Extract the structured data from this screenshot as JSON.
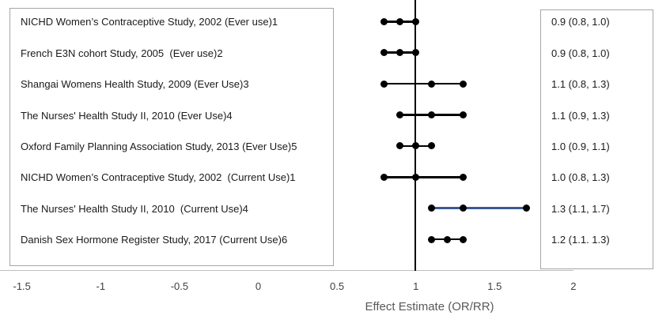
{
  "chart_data": {
    "type": "forest",
    "title": "",
    "xlabel": "Effect Estimate (OR/RR)",
    "x_ticks": [
      -1.5,
      -1,
      -0.5,
      0,
      0.5,
      1,
      1.5,
      2
    ],
    "x_axis_range": [
      -1.5,
      2.25
    ],
    "reference_line_x": 1,
    "grid": false,
    "studies": [
      {
        "label": "NICHD Women’s Contraceptive Study, 2002 (Ever use)1",
        "estimate": 0.9,
        "ci_low": 0.8,
        "ci_high": 1.0,
        "value_text": "0.9 (0.8, 1.0)",
        "highlight": false
      },
      {
        "label": "French E3N cohort Study, 2005  (Ever use)2",
        "estimate": 0.9,
        "ci_low": 0.8,
        "ci_high": 1.0,
        "value_text": "0.9 (0.8, 1.0)",
        "highlight": false
      },
      {
        "label": "Shangai Womens Health Study, 2009 (Ever Use)3",
        "estimate": 1.1,
        "ci_low": 0.8,
        "ci_high": 1.3,
        "value_text": "1.1 (0.8, 1.3)",
        "highlight": false
      },
      {
        "label": "The Nurses' Health Study II, 2010 (Ever Use)4",
        "estimate": 1.1,
        "ci_low": 0.9,
        "ci_high": 1.3,
        "value_text": "1.1 (0.9, 1.3)",
        "highlight": false
      },
      {
        "label": "Oxford Family Planning Association Study, 2013 (Ever Use)5",
        "estimate": 1.0,
        "ci_low": 0.9,
        "ci_high": 1.1,
        "value_text": "1.0 (0.9, 1.1)",
        "highlight": false
      },
      {
        "label": "NICHD Women’s Contraceptive Study, 2002  (Current Use)1",
        "estimate": 1.0,
        "ci_low": 0.8,
        "ci_high": 1.3,
        "value_text": "1.0 (0.8, 1.3)",
        "highlight": false
      },
      {
        "label": "The Nurses' Health Study II, 2010  (Current Use)4",
        "estimate": 1.3,
        "ci_low": 1.1,
        "ci_high": 1.7,
        "value_text": "1.3 (1.1, 1.7)",
        "highlight": true
      },
      {
        "label": "Danish Sex Hormone Register Study, 2017 (Current Use)6",
        "estimate": 1.2,
        "ci_low": 1.1,
        "ci_high": 1.3,
        "value_text": "1.2 (1.1. 1.3)",
        "highlight": false
      }
    ],
    "colors": {
      "marker": "#000000",
      "ci_line": "#000000",
      "highlight_line": "#3a5a94",
      "reference_line": "#000000",
      "axis_line": "#bfbfbf",
      "box_border": "#a6a6a6",
      "tick_label": "#404040",
      "axis_title": "#595959",
      "label_text": "#1a1a1a"
    }
  }
}
